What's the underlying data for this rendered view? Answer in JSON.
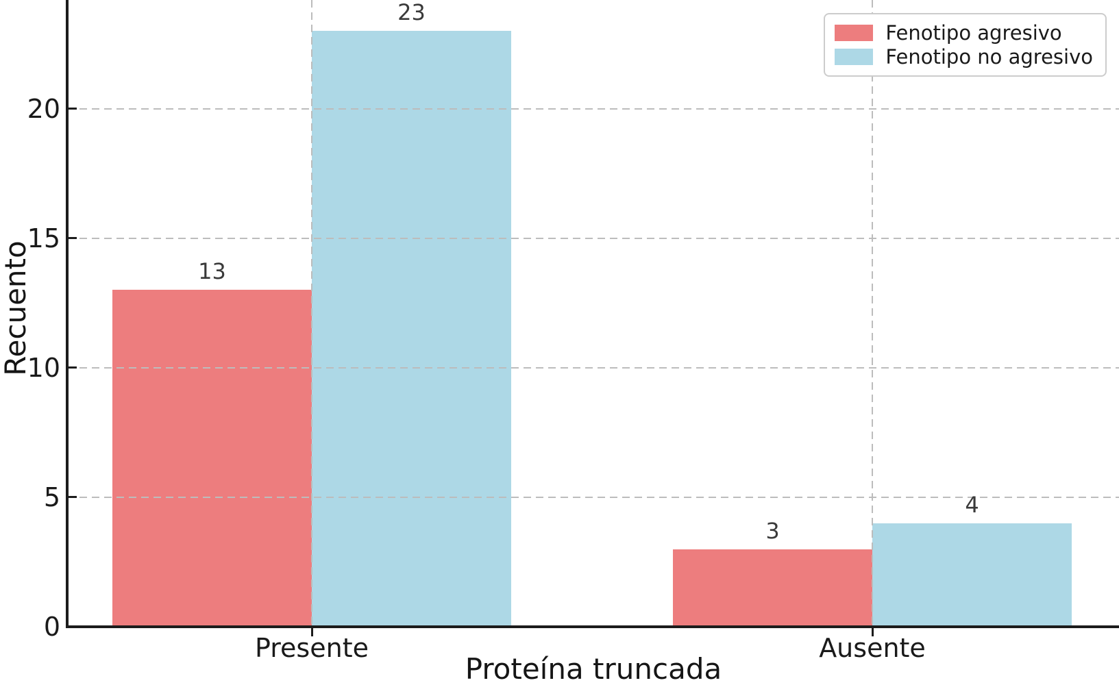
{
  "chart_data": {
    "type": "bar",
    "title": "",
    "xlabel": "Proteína truncada",
    "ylabel": "Recuento",
    "categories": [
      "Presente",
      "Ausente"
    ],
    "series": [
      {
        "name": "Fenotipo agresivo",
        "color": "#ed7d7e",
        "values": [
          13,
          3
        ]
      },
      {
        "name": "Fenotipo no agresivo",
        "color": "#add8e6",
        "values": [
          23,
          4
        ]
      }
    ],
    "bar_value_labels": [
      [
        "13",
        "3"
      ],
      [
        "23",
        "4"
      ]
    ],
    "yticks": [
      "0",
      "5",
      "10",
      "15",
      "20"
    ],
    "ytick_values": [
      0,
      5,
      10,
      15,
      20
    ],
    "ylim": [
      0,
      24.2
    ],
    "grid": true,
    "grid_linestyle": "dashed",
    "legend_position": "upper right",
    "colors": {
      "grid": "#bcbcbc",
      "axis": "#1c1c1c",
      "tick_label": "#1a1a1a",
      "value_label": "#3a3a3a",
      "background": "#ffffff"
    }
  }
}
